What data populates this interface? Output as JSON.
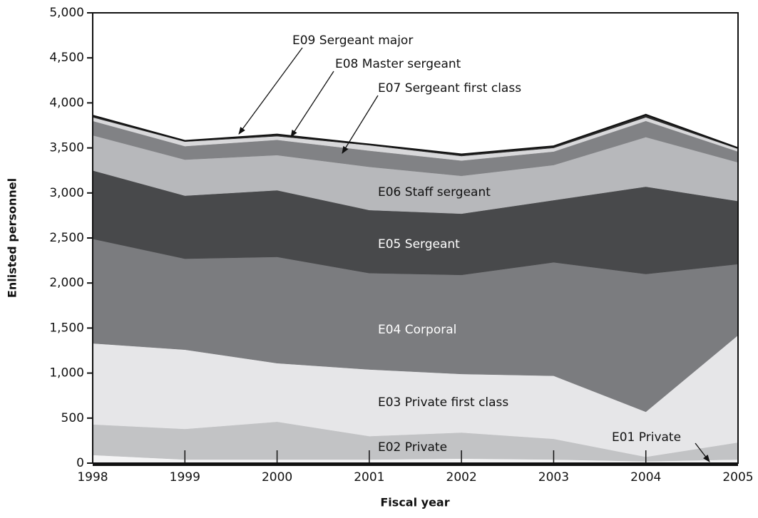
{
  "chart_data": {
    "type": "stacked-area",
    "x_label": "Fiscal year",
    "y_label": "Enlisted personnel",
    "x": [
      1998,
      1999,
      2000,
      2001,
      2002,
      2003,
      2004,
      2005
    ],
    "xlim": [
      1998,
      2005
    ],
    "xticks": [
      1998,
      1999,
      2000,
      2001,
      2002,
      2003,
      2004,
      2005
    ],
    "ylim": [
      0,
      5000
    ],
    "yticks": [
      0,
      500,
      {
        "value": 1000,
        "label": "1,000"
      },
      {
        "value": 1500,
        "label": "1,500"
      },
      {
        "value": 2000,
        "label": "2,000"
      },
      {
        "value": 2500,
        "label": "2,500"
      },
      {
        "value": 3000,
        "label": "3,000"
      },
      {
        "value": 3500,
        "label": "3,500"
      },
      {
        "value": 4000,
        "label": "4,000"
      },
      {
        "value": 4500,
        "label": "4,500"
      },
      {
        "value": 5000,
        "label": "5,000"
      }
    ],
    "series": [
      {
        "name": "E01  Private",
        "color": "#f4f4f5",
        "values": [
          90,
          40,
          40,
          40,
          50,
          40,
          20,
          40
        ]
      },
      {
        "name": "E02  Private",
        "color": "#c2c3c5",
        "values": [
          340,
          340,
          420,
          260,
          290,
          230,
          50,
          190
        ]
      },
      {
        "name": "E03  Private first class",
        "color": "#e6e6e8",
        "values": [
          900,
          880,
          650,
          740,
          650,
          700,
          500,
          1190
        ]
      },
      {
        "name": "E04  Corporal",
        "color": "#7b7c7f",
        "values": [
          1160,
          1010,
          1180,
          1070,
          1100,
          1260,
          1530,
          790
        ]
      },
      {
        "name": "E05  Sergeant",
        "color": "#48494b",
        "values": [
          760,
          700,
          740,
          700,
          680,
          690,
          970,
          700
        ]
      },
      {
        "name": "E06  Staff sergeant",
        "color": "#b7b8bb",
        "values": [
          390,
          400,
          390,
          480,
          420,
          390,
          550,
          430
        ]
      },
      {
        "name": "E07  Sergeant first class",
        "color": "#818285",
        "values": [
          160,
          150,
          170,
          180,
          170,
          150,
          180,
          120
        ]
      },
      {
        "name": "E08  Master sergeant",
        "color": "#d8d8da",
        "values": [
          40,
          50,
          40,
          60,
          50,
          40,
          40,
          30
        ]
      },
      {
        "name": "E09  Sergeant major",
        "color": "#2a2a2a",
        "values": [
          20,
          10,
          20,
          10,
          20,
          20,
          30,
          10
        ]
      }
    ]
  }
}
